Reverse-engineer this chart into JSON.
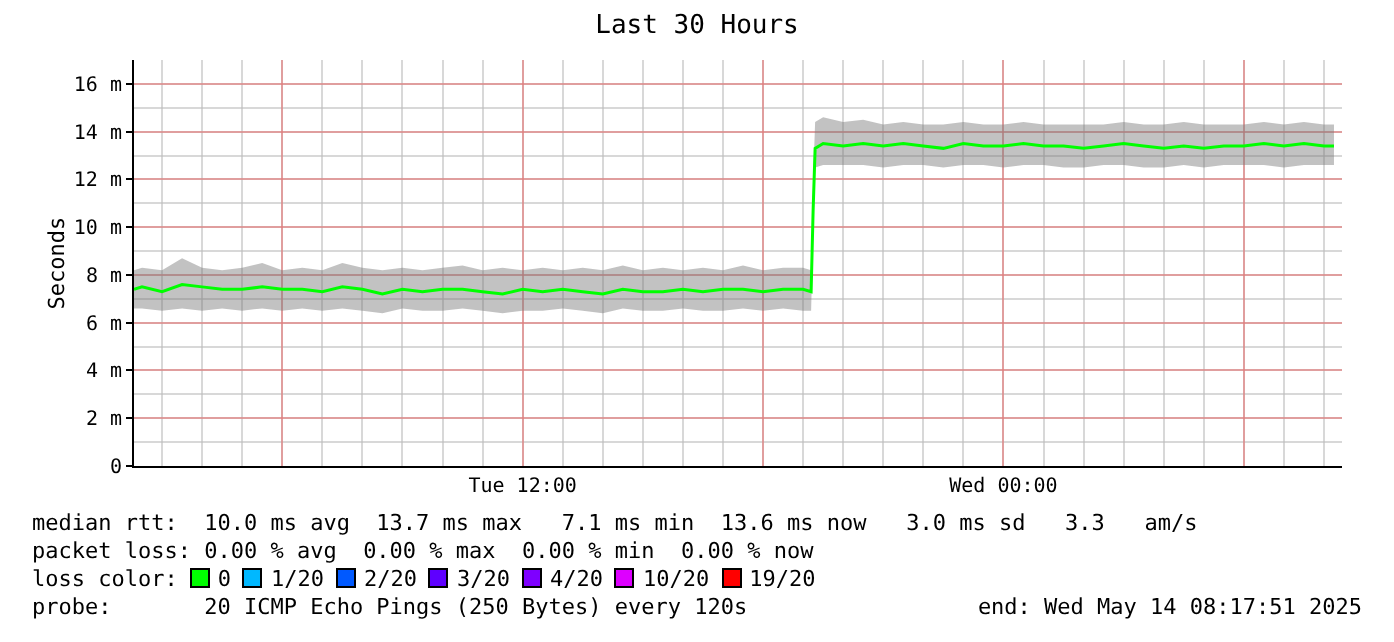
{
  "chart_data": {
    "type": "line",
    "title": "Last 30 Hours",
    "ylabel": "Seconds",
    "x": [
      "2025-05-13T02:18",
      "2025-05-13T02:30",
      "2025-05-13T03:00",
      "2025-05-13T03:30",
      "2025-05-13T04:00",
      "2025-05-13T04:30",
      "2025-05-13T05:00",
      "2025-05-13T05:30",
      "2025-05-13T06:00",
      "2025-05-13T06:30",
      "2025-05-13T07:00",
      "2025-05-13T07:30",
      "2025-05-13T08:00",
      "2025-05-13T08:30",
      "2025-05-13T09:00",
      "2025-05-13T09:30",
      "2025-05-13T10:00",
      "2025-05-13T10:30",
      "2025-05-13T11:00",
      "2025-05-13T11:30",
      "2025-05-13T12:00",
      "2025-05-13T12:30",
      "2025-05-13T13:00",
      "2025-05-13T13:30",
      "2025-05-13T14:00",
      "2025-05-13T14:30",
      "2025-05-13T15:00",
      "2025-05-13T15:30",
      "2025-05-13T16:00",
      "2025-05-13T16:30",
      "2025-05-13T17:00",
      "2025-05-13T17:30",
      "2025-05-13T18:00",
      "2025-05-13T18:30",
      "2025-05-13T19:00",
      "2025-05-13T19:12",
      "2025-05-13T19:15",
      "2025-05-13T19:18",
      "2025-05-13T19:30",
      "2025-05-13T20:00",
      "2025-05-13T20:30",
      "2025-05-13T21:00",
      "2025-05-13T21:30",
      "2025-05-13T22:00",
      "2025-05-13T22:30",
      "2025-05-13T23:00",
      "2025-05-13T23:30",
      "2025-05-14T00:00",
      "2025-05-14T00:30",
      "2025-05-14T01:00",
      "2025-05-14T01:30",
      "2025-05-14T02:00",
      "2025-05-14T02:30",
      "2025-05-14T03:00",
      "2025-05-14T03:30",
      "2025-05-14T04:00",
      "2025-05-14T04:30",
      "2025-05-14T05:00",
      "2025-05-14T05:30",
      "2025-05-14T06:00",
      "2025-05-14T06:30",
      "2025-05-14T07:00",
      "2025-05-14T07:30",
      "2025-05-14T08:00",
      "2025-05-14T08:15"
    ],
    "series": [
      {
        "color": "#00ff00",
        "values": [
          7.4,
          7.5,
          7.3,
          7.6,
          7.5,
          7.4,
          7.4,
          7.5,
          7.4,
          7.4,
          7.3,
          7.5,
          7.4,
          7.2,
          7.4,
          7.3,
          7.4,
          7.4,
          7.3,
          7.2,
          7.4,
          7.3,
          7.4,
          7.3,
          7.2,
          7.4,
          7.3,
          7.3,
          7.4,
          7.3,
          7.4,
          7.4,
          7.3,
          7.4,
          7.4,
          7.3,
          10.7,
          13.3,
          13.5,
          13.4,
          13.5,
          13.4,
          13.5,
          13.4,
          13.3,
          13.5,
          13.4,
          13.4,
          13.5,
          13.4,
          13.4,
          13.3,
          13.4,
          13.5,
          13.4,
          13.3,
          13.4,
          13.3,
          13.4,
          13.4,
          13.5,
          13.4,
          13.5,
          13.4,
          13.4
        ],
        "lower": [
          6.6,
          6.6,
          6.5,
          6.6,
          6.5,
          6.6,
          6.5,
          6.6,
          6.5,
          6.6,
          6.5,
          6.6,
          6.5,
          6.4,
          6.6,
          6.5,
          6.5,
          6.6,
          6.5,
          6.4,
          6.5,
          6.5,
          6.6,
          6.5,
          6.4,
          6.6,
          6.5,
          6.5,
          6.6,
          6.5,
          6.5,
          6.6,
          6.5,
          6.6,
          6.5,
          6.5,
          10.0,
          12.5,
          12.6,
          12.6,
          12.6,
          12.5,
          12.6,
          12.6,
          12.5,
          12.6,
          12.6,
          12.5,
          12.6,
          12.6,
          12.5,
          12.5,
          12.6,
          12.6,
          12.5,
          12.5,
          12.6,
          12.5,
          12.6,
          12.6,
          12.6,
          12.5,
          12.6,
          12.6,
          12.6
        ],
        "upper": [
          8.2,
          8.3,
          8.2,
          8.7,
          8.3,
          8.2,
          8.3,
          8.5,
          8.2,
          8.3,
          8.2,
          8.5,
          8.3,
          8.2,
          8.3,
          8.2,
          8.3,
          8.4,
          8.2,
          8.3,
          8.2,
          8.3,
          8.2,
          8.3,
          8.2,
          8.4,
          8.2,
          8.3,
          8.2,
          8.3,
          8.2,
          8.4,
          8.2,
          8.3,
          8.3,
          8.2,
          12.0,
          14.4,
          14.6,
          14.4,
          14.5,
          14.3,
          14.4,
          14.3,
          14.3,
          14.4,
          14.3,
          14.3,
          14.4,
          14.3,
          14.3,
          14.3,
          14.3,
          14.4,
          14.3,
          14.3,
          14.4,
          14.3,
          14.3,
          14.3,
          14.4,
          14.3,
          14.4,
          14.3,
          14.3
        ]
      }
    ],
    "xlim": [
      "2025-05-13T02:18",
      "2025-05-14T08:27"
    ],
    "xticks": [
      {
        "value": "2025-05-13T06:00",
        "label": null
      },
      {
        "value": "2025-05-13T12:00",
        "label": "Tue 12:00"
      },
      {
        "value": "2025-05-13T18:00",
        "label": null
      },
      {
        "value": "2025-05-14T00:00",
        "label": "Wed 00:00"
      },
      {
        "value": "2025-05-14T06:00",
        "label": null
      }
    ],
    "ylim": [
      0,
      17
    ],
    "yticks": [
      {
        "value": 0,
        "label": "0"
      },
      {
        "value": 2,
        "label": "2 m"
      },
      {
        "value": 4,
        "label": "4 m"
      },
      {
        "value": 6,
        "label": "6 m"
      },
      {
        "value": 8,
        "label": "8 m"
      },
      {
        "value": 10,
        "label": "10 m"
      },
      {
        "value": 12,
        "label": "12 m"
      },
      {
        "value": 14,
        "label": "14 m"
      },
      {
        "value": 16,
        "label": "16 m"
      }
    ],
    "grid": true,
    "annotations": [
      "median rtt:  10.0 ms avg  13.7 ms max   7.1 ms min  13.6 ms now   3.0 ms sd   3.3   am/s",
      "packet loss: 0.00 % avg  0.00 % max  0.00 % min  0.00 % now",
      "loss color:",
      "0",
      "1/20",
      "2/20",
      "3/20",
      "4/20",
      "10/20",
      "19/20",
      "probe:       20 ICMP Echo Pings (250 Bytes) every 120s",
      "end: Wed May 14 08:17:51 2025"
    ]
  }
}
